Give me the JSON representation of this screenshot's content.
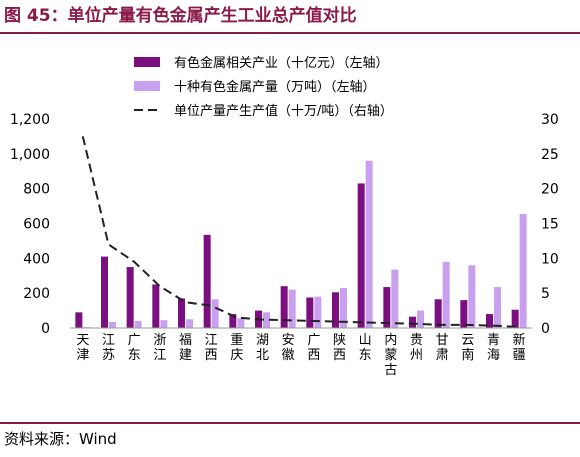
{
  "page": {
    "title": "图 45：单位产量有色金属产生工业总产值对比",
    "source": "资料来源：Wind"
  },
  "chart_data": {
    "type": "bar",
    "categories": [
      "天津",
      "江苏",
      "广东",
      "浙江",
      "福建",
      "江西",
      "重庆",
      "湖北",
      "安徽",
      "广西",
      "陕西",
      "山东",
      "内蒙古",
      "贵州",
      "甘肃",
      "云南",
      "青海",
      "新疆"
    ],
    "series": [
      {
        "name": "有色金属相关产业（十亿元）（左轴）",
        "type": "bar",
        "axis": "left",
        "color": "#7b0f7f",
        "values": [
          90,
          410,
          350,
          250,
          170,
          535,
          80,
          100,
          240,
          175,
          205,
          830,
          235,
          65,
          165,
          160,
          80,
          105
        ]
      },
      {
        "name": "十种有色金属产量（万吨）（左轴）",
        "type": "bar",
        "axis": "left",
        "color": "#c9a0ef",
        "values": [
          5,
          35,
          40,
          45,
          50,
          165,
          55,
          90,
          220,
          180,
          230,
          960,
          335,
          100,
          380,
          360,
          235,
          655
        ]
      },
      {
        "name": "单位产量产生产值（十万/吨）（右轴）",
        "type": "line",
        "axis": "right",
        "color": "#222222",
        "dashed": true,
        "values": [
          27.5,
          12.0,
          9.5,
          6.0,
          3.7,
          3.2,
          1.5,
          1.2,
          1.1,
          1.0,
          0.9,
          0.8,
          0.7,
          0.6,
          0.45,
          0.45,
          0.35,
          0.15
        ]
      }
    ],
    "y_left": {
      "min": 0,
      "max": 1200,
      "ticks": [
        "0",
        "200",
        "400",
        "600",
        "800",
        "1,000",
        "1,200"
      ]
    },
    "y_right": {
      "min": 0,
      "max": 30,
      "ticks": [
        "0",
        "5",
        "10",
        "15",
        "20",
        "25",
        "30"
      ]
    },
    "grid": false,
    "legend_position": "top"
  }
}
